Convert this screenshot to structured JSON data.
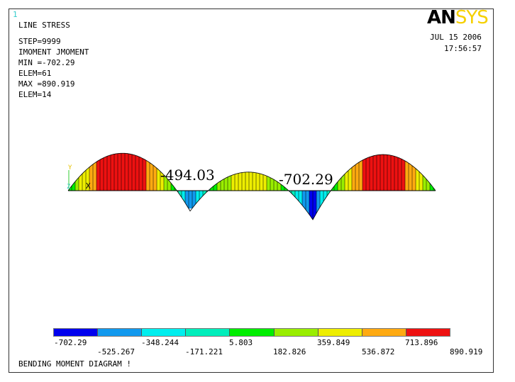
{
  "window_number": "1",
  "info": {
    "lines": [
      "LINE STRESS",
      "STEP=9999",
      "IMOMENT JMOMENT",
      "MIN =-702.29",
      "ELEM=61",
      "MAX =890.919",
      "ELEM=14"
    ]
  },
  "logo": {
    "an": "AN",
    "sys": "SYS"
  },
  "timestamp": {
    "date": "JUL 15 2006",
    "time": "17:56:57"
  },
  "axis_triad": {
    "y": "Y",
    "z": "Z",
    "x": "X"
  },
  "annotations": [
    "-494.03",
    "-702.29"
  ],
  "contour_colors": [
    "#0000ee",
    "#1199ee",
    "#00eeee",
    "#00eebb",
    "#00ee00",
    "#99ee00",
    "#eeee00",
    "#ffaa11",
    "#ee1111"
  ],
  "legend": {
    "labels_lower": [
      "-702.29",
      "-348.244",
      "5.803",
      "359.849",
      "713.896"
    ],
    "labels_upper": [
      "-525.267",
      "-171.221",
      "182.826",
      "536.872",
      "890.919"
    ]
  },
  "footer": {
    "title": "BENDING MOMENT DIAGRAM   !"
  }
}
